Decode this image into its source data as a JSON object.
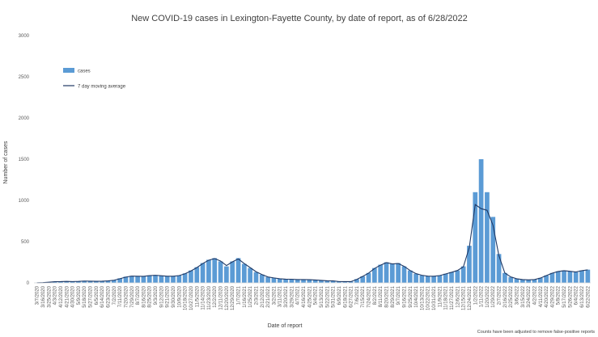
{
  "chart_data": {
    "type": "bar",
    "title": "New COVID-19 cases in Lexington-Fayette County, by date of report, as of 6/28/2022",
    "xlabel": "Date of report",
    "ylabel": "Number of cases",
    "ylim": [
      0,
      3000
    ],
    "yticks": [
      "0",
      "500",
      "1000",
      "1500",
      "2000",
      "2500",
      "3000"
    ],
    "grid": false,
    "legend_position": "top-left",
    "colors": {
      "bars": "#5b9bd5",
      "line": "#1f3864"
    },
    "footnote": "Counts have been adjusted to remove false-positive reports",
    "xtick_labels": [
      "3/7/2020",
      "3/16/2020",
      "3/25/2020",
      "4/3/2020",
      "4/12/2020",
      "4/21/2020",
      "4/30/2020",
      "5/9/2020",
      "5/18/2020",
      "5/27/2020",
      "6/5/2020",
      "6/14/2020",
      "6/23/2020",
      "7/2/2020",
      "7/11/2020",
      "7/20/2020",
      "7/29/2020",
      "8/7/2020",
      "8/16/2020",
      "8/25/2020",
      "9/3/2020",
      "9/12/2020",
      "9/21/2020",
      "9/30/2020",
      "10/9/2020",
      "10/18/2020",
      "10/27/2020",
      "11/5/2020",
      "11/14/2020",
      "11/23/2020",
      "12/2/2020",
      "12/11/2020",
      "12/20/2020",
      "12/29/2020",
      "1/7/2021",
      "1/16/2021",
      "1/25/2021",
      "2/3/2021",
      "2/12/2021",
      "2/21/2021",
      "3/2/2021",
      "3/11/2021",
      "3/20/2021",
      "3/29/2021",
      "4/7/2021",
      "4/16/2021",
      "4/25/2021",
      "5/4/2021",
      "5/13/2021",
      "5/22/2021",
      "5/31/2021",
      "6/9/2021",
      "6/18/2021",
      "6/27/2021",
      "7/6/2021",
      "7/15/2021",
      "7/24/2021",
      "8/2/2021",
      "8/11/2021",
      "8/20/2021",
      "8/29/2021",
      "9/7/2021",
      "9/16/2021",
      "9/25/2021",
      "10/4/2021",
      "10/13/2021",
      "10/22/2021",
      "10/31/2021",
      "11/9/2021",
      "11/18/2021",
      "11/27/2021",
      "12/6/2021",
      "12/15/2021",
      "12/24/2021",
      "1/2/2022",
      "1/11/2022",
      "1/20/2022",
      "1/29/2022",
      "2/7/2022",
      "2/16/2022",
      "2/25/2022",
      "3/6/2022",
      "3/15/2022",
      "3/24/2022",
      "4/2/2022",
      "4/11/2022",
      "4/20/2022",
      "4/29/2022",
      "5/8/2022",
      "5/17/2022",
      "5/26/2022",
      "6/4/2022",
      "6/13/2022",
      "6/22/2022"
    ],
    "series": [
      {
        "name": "cases",
        "x": [
          "3/7/2020",
          "3/16/2020",
          "3/25/2020",
          "4/3/2020",
          "4/12/2020",
          "4/21/2020",
          "4/30/2020",
          "5/9/2020",
          "5/18/2020",
          "5/27/2020",
          "6/5/2020",
          "6/14/2020",
          "6/23/2020",
          "7/2/2020",
          "7/11/2020",
          "7/20/2020",
          "7/29/2020",
          "8/7/2020",
          "8/16/2020",
          "8/25/2020",
          "9/3/2020",
          "9/12/2020",
          "9/21/2020",
          "9/30/2020",
          "10/9/2020",
          "10/18/2020",
          "10/27/2020",
          "11/5/2020",
          "11/14/2020",
          "11/23/2020",
          "12/2/2020",
          "12/11/2020",
          "12/20/2020",
          "12/29/2020",
          "1/7/2021",
          "1/16/2021",
          "1/25/2021",
          "2/3/2021",
          "2/12/2021",
          "2/21/2021",
          "3/2/2021",
          "3/11/2021",
          "3/20/2021",
          "3/29/2021",
          "4/7/2021",
          "4/16/2021",
          "4/25/2021",
          "5/4/2021",
          "5/13/2021",
          "5/22/2021",
          "5/31/2021",
          "6/9/2021",
          "6/18/2021",
          "6/27/2021",
          "7/6/2021",
          "7/15/2021",
          "7/24/2021",
          "8/2/2021",
          "8/11/2021",
          "8/20/2021",
          "8/29/2021",
          "9/7/2021",
          "9/16/2021",
          "9/25/2021",
          "10/4/2021",
          "10/13/2021",
          "10/22/2021",
          "10/31/2021",
          "11/9/2021",
          "11/18/2021",
          "11/27/2021",
          "12/6/2021",
          "12/15/2021",
          "12/24/2021",
          "1/2/2022",
          "1/11/2022",
          "1/20/2022",
          "1/29/2022",
          "2/7/2022",
          "2/16/2022",
          "2/25/2022",
          "3/6/2022",
          "3/15/2022",
          "3/24/2022",
          "4/2/2022",
          "4/11/2022",
          "4/20/2022",
          "4/29/2022",
          "5/8/2022",
          "5/17/2022",
          "5/26/2022",
          "6/4/2022",
          "6/13/2022",
          "6/22/2022"
        ],
        "values": [
          2,
          5,
          10,
          15,
          15,
          20,
          15,
          20,
          25,
          20,
          20,
          20,
          25,
          35,
          55,
          75,
          85,
          80,
          80,
          90,
          95,
          85,
          80,
          80,
          90,
          115,
          150,
          190,
          240,
          280,
          300,
          260,
          200,
          260,
          300,
          230,
          180,
          130,
          100,
          70,
          60,
          50,
          45,
          45,
          40,
          40,
          40,
          35,
          30,
          25,
          25,
          15,
          15,
          15,
          45,
          80,
          120,
          180,
          220,
          250,
          230,
          240,
          200,
          150,
          110,
          90,
          80,
          80,
          90,
          110,
          130,
          150,
          200,
          450,
          1100,
          1500,
          1100,
          800,
          350,
          120,
          70,
          50,
          40,
          35,
          40,
          60,
          90,
          120,
          140,
          150,
          140,
          130,
          150,
          160
        ]
      },
      {
        "name": "7 day moving average",
        "x": [
          "3/7/2020",
          "3/16/2020",
          "3/25/2020",
          "4/3/2020",
          "4/12/2020",
          "4/21/2020",
          "4/30/2020",
          "5/9/2020",
          "5/18/2020",
          "5/27/2020",
          "6/5/2020",
          "6/14/2020",
          "6/23/2020",
          "7/2/2020",
          "7/11/2020",
          "7/20/2020",
          "7/29/2020",
          "8/7/2020",
          "8/16/2020",
          "8/25/2020",
          "9/3/2020",
          "9/12/2020",
          "9/21/2020",
          "9/30/2020",
          "10/9/2020",
          "10/18/2020",
          "10/27/2020",
          "11/5/2020",
          "11/14/2020",
          "11/23/2020",
          "12/2/2020",
          "12/11/2020",
          "12/20/2020",
          "12/29/2020",
          "1/7/2021",
          "1/16/2021",
          "1/25/2021",
          "2/3/2021",
          "2/12/2021",
          "2/21/2021",
          "3/2/2021",
          "3/11/2021",
          "3/20/2021",
          "3/29/2021",
          "4/7/2021",
          "4/16/2021",
          "4/25/2021",
          "5/4/2021",
          "5/13/2021",
          "5/22/2021",
          "5/31/2021",
          "6/9/2021",
          "6/18/2021",
          "6/27/2021",
          "7/6/2021",
          "7/15/2021",
          "7/24/2021",
          "8/2/2021",
          "8/11/2021",
          "8/20/2021",
          "8/29/2021",
          "9/7/2021",
          "9/16/2021",
          "9/25/2021",
          "10/4/2021",
          "10/13/2021",
          "10/22/2021",
          "10/31/2021",
          "11/9/2021",
          "11/18/2021",
          "11/27/2021",
          "12/6/2021",
          "12/15/2021",
          "12/24/2021",
          "1/2/2022",
          "1/11/2022",
          "1/20/2022",
          "1/29/2022",
          "2/7/2022",
          "2/16/2022",
          "2/25/2022",
          "3/6/2022",
          "3/15/2022",
          "3/24/2022",
          "4/2/2022",
          "4/11/2022",
          "4/20/2022",
          "4/29/2022",
          "5/8/2022",
          "5/17/2022",
          "5/26/2022",
          "6/4/2022",
          "6/13/2022",
          "6/22/2022"
        ],
        "values": [
          1,
          3,
          8,
          14,
          15,
          18,
          16,
          18,
          22,
          20,
          19,
          20,
          24,
          32,
          50,
          70,
          82,
          80,
          79,
          88,
          92,
          86,
          80,
          80,
          88,
          110,
          145,
          185,
          235,
          275,
          295,
          265,
          210,
          255,
          290,
          235,
          185,
          135,
          100,
          72,
          60,
          50,
          45,
          44,
          40,
          40,
          39,
          35,
          30,
          25,
          24,
          16,
          15,
          15,
          42,
          78,
          118,
          175,
          215,
          245,
          230,
          235,
          200,
          150,
          112,
          92,
          82,
          80,
          88,
          108,
          128,
          150,
          195,
          430,
          950,
          900,
          880,
          700,
          330,
          120,
          72,
          50,
          40,
          36,
          40,
          58,
          88,
          118,
          138,
          148,
          140,
          132,
          148,
          158
        ]
      }
    ]
  }
}
